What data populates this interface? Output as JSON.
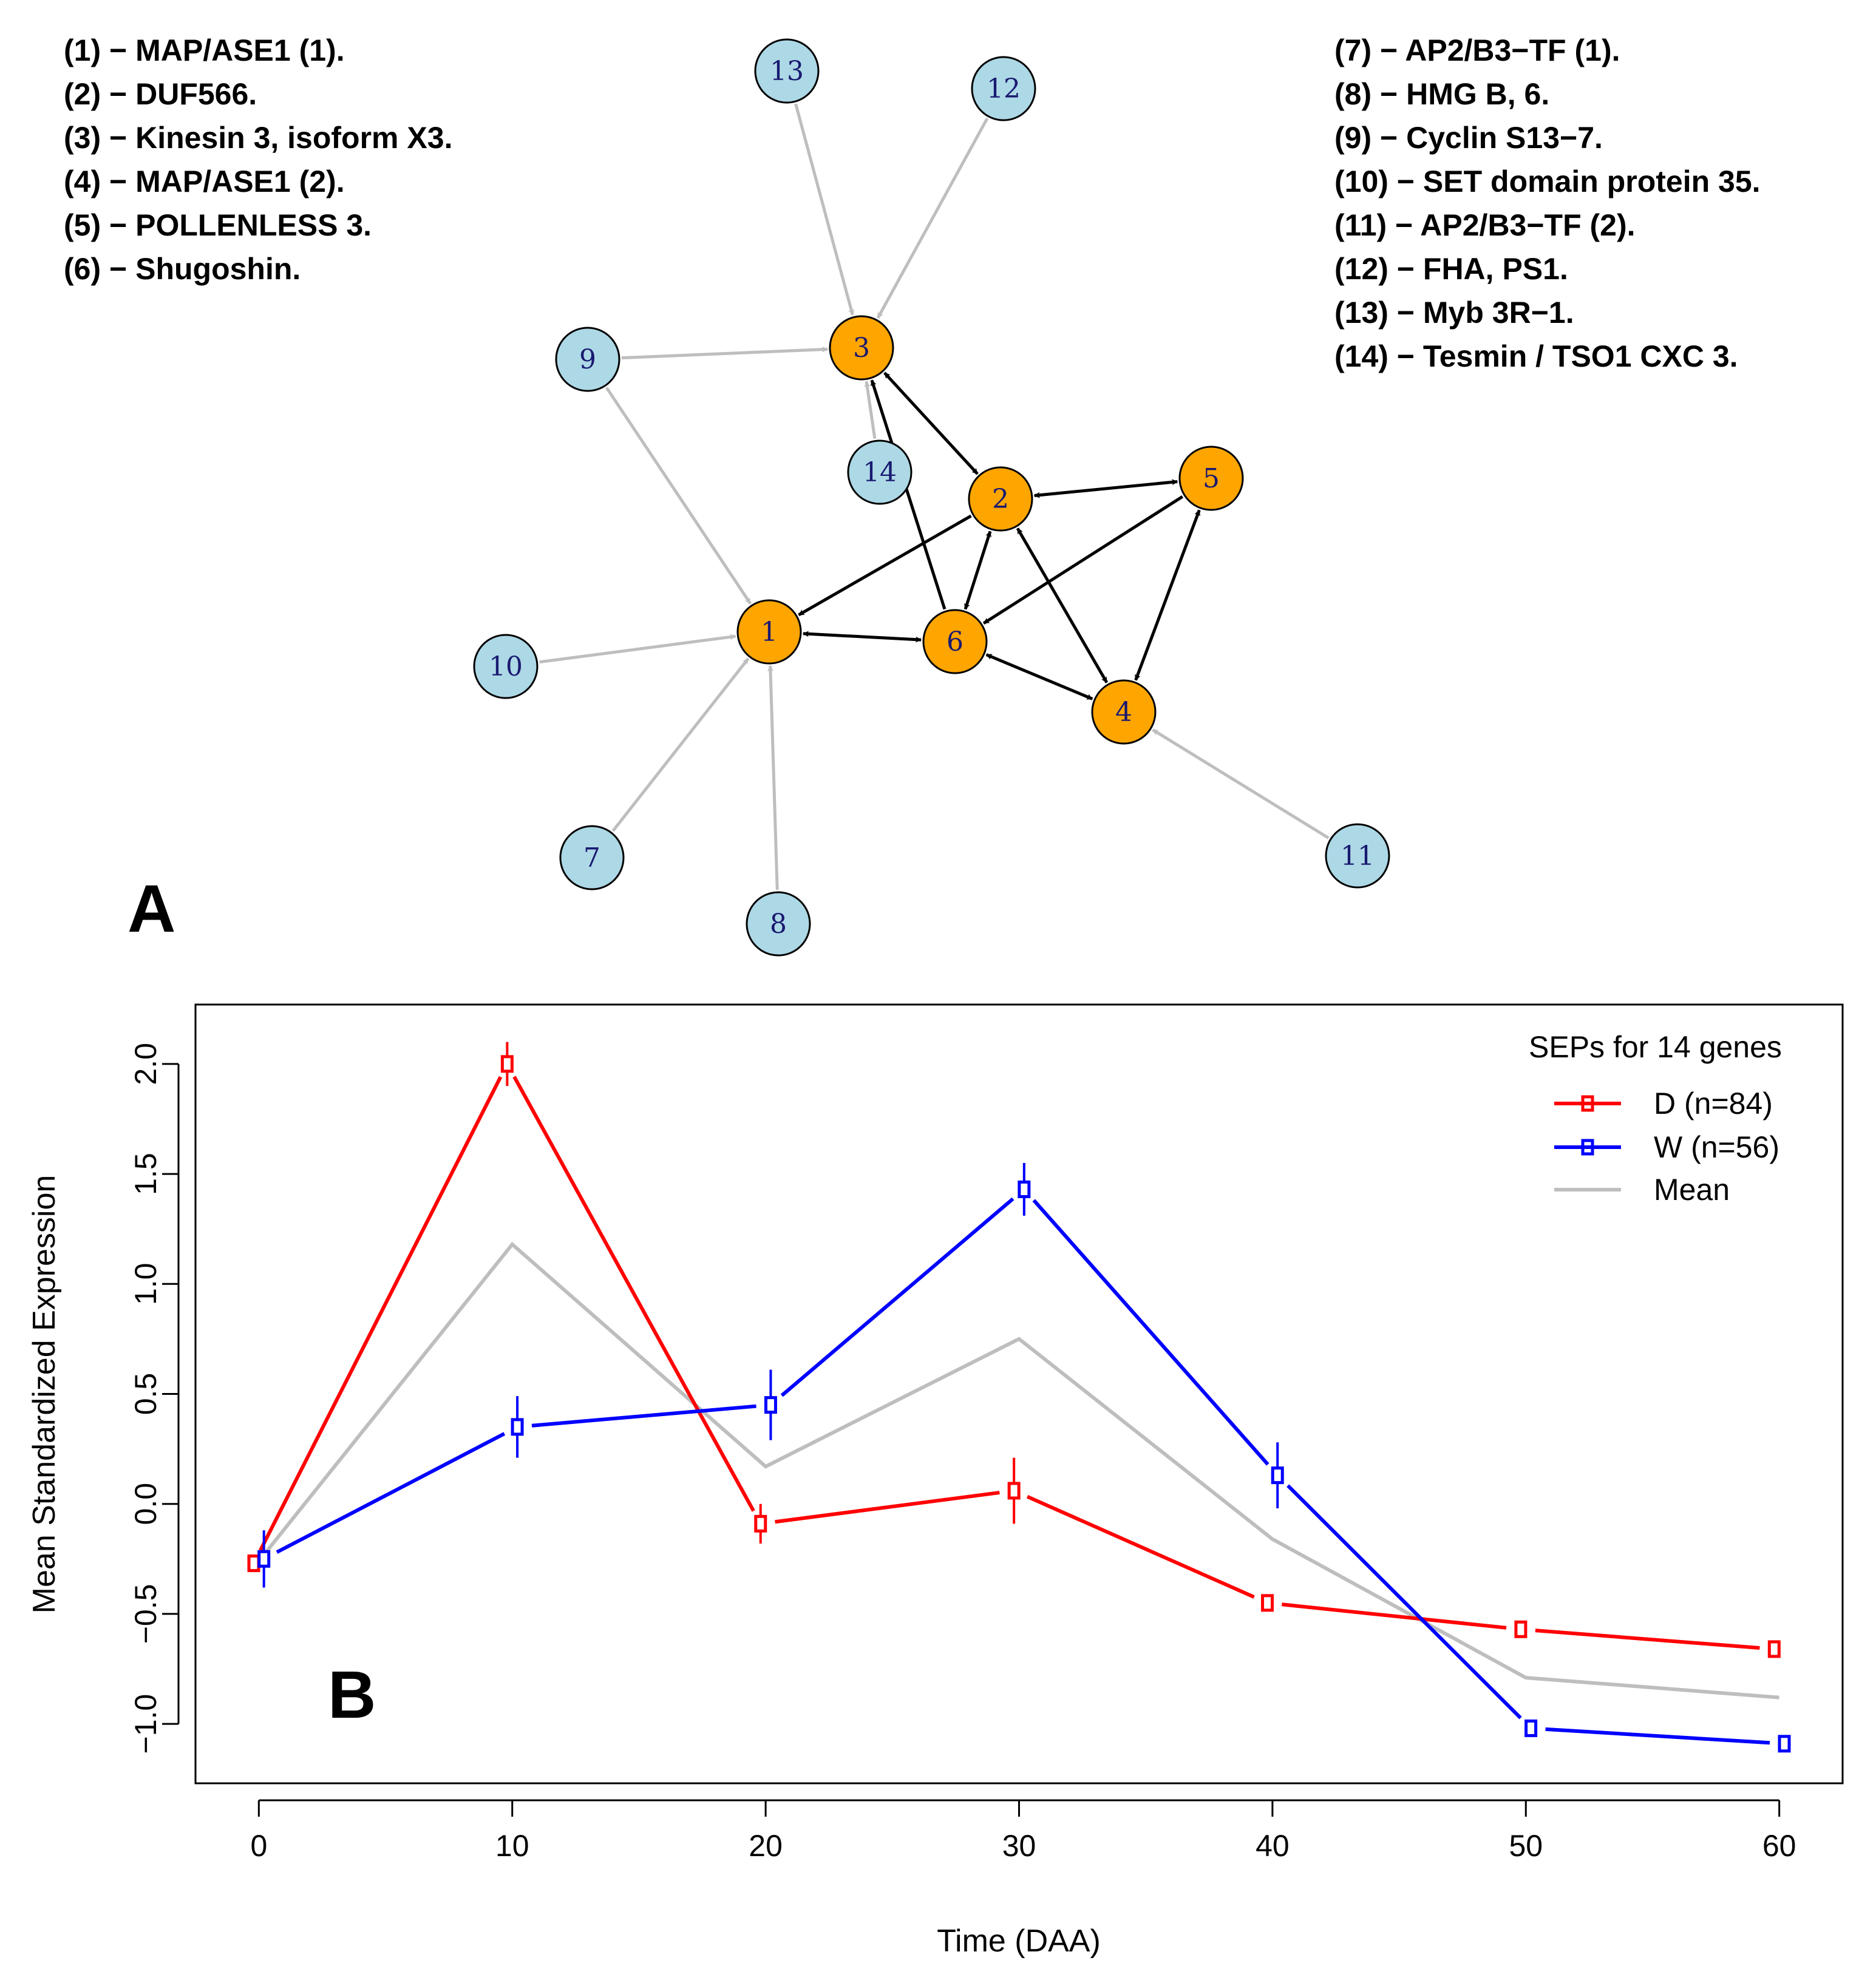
{
  "network": {
    "panel_label": "A",
    "legend_left": [
      "(1) − MAP/ASE1 (1).",
      "(2) − DUF566.",
      "(3) − Kinesin 3, isoform X3.",
      "(4) − MAP/ASE1 (2).",
      "(5) − POLLENLESS 3.",
      "(6) − Shugoshin."
    ],
    "legend_right": [
      "(7) − AP2/B3−TF (1).",
      "(8) − HMG B, 6.",
      "(9) − Cyclin S13−7.",
      "(10) − SET domain protein 35.",
      "(11) − AP2/B3−TF (2).",
      "(12) − FHA, PS1.",
      "(13) − Myb 3R−1.",
      "(14) − Tesmin / TSO1 CXC 3."
    ],
    "nodes": [
      {
        "id": "1",
        "group": "core"
      },
      {
        "id": "2",
        "group": "core"
      },
      {
        "id": "3",
        "group": "core"
      },
      {
        "id": "4",
        "group": "core"
      },
      {
        "id": "5",
        "group": "core"
      },
      {
        "id": "6",
        "group": "core"
      },
      {
        "id": "7",
        "group": "regulator"
      },
      {
        "id": "8",
        "group": "regulator"
      },
      {
        "id": "9",
        "group": "regulator"
      },
      {
        "id": "10",
        "group": "regulator"
      },
      {
        "id": "11",
        "group": "regulator"
      },
      {
        "id": "12",
        "group": "regulator"
      },
      {
        "id": "13",
        "group": "regulator"
      },
      {
        "id": "14",
        "group": "regulator"
      }
    ],
    "edges_bidirectional": [
      [
        "1",
        "6"
      ],
      [
        "2",
        "3"
      ],
      [
        "2",
        "5"
      ],
      [
        "2",
        "6"
      ],
      [
        "5",
        "4"
      ],
      [
        "6",
        "4"
      ],
      [
        "2",
        "4"
      ]
    ],
    "edges_directed": [
      [
        "2",
        "1"
      ],
      [
        "5",
        "6"
      ],
      [
        "6",
        "3"
      ]
    ],
    "edges_regulatory": [
      [
        "13",
        "3"
      ],
      [
        "12",
        "3"
      ],
      [
        "9",
        "3"
      ],
      [
        "14",
        "3"
      ],
      [
        "9",
        "1"
      ],
      [
        "10",
        "1"
      ],
      [
        "7",
        "1"
      ],
      [
        "8",
        "1"
      ],
      [
        "11",
        "4"
      ]
    ],
    "colors": {
      "core": "#FFA500",
      "regulator": "#ADD8E6",
      "core_edge": "#000000",
      "reg_edge": "#BEBEBE",
      "node_label": "#191970"
    }
  },
  "chart_data": {
    "type": "line",
    "panel_label": "B",
    "xlabel": "Time (DAA)",
    "ylabel": "Mean Standardized Expression",
    "x": [
      0,
      10,
      20,
      30,
      40,
      50,
      60
    ],
    "xlim": [
      -2.5,
      62.5
    ],
    "ylim": [
      -1.27,
      2.27
    ],
    "xticks": [
      "0",
      "10",
      "20",
      "30",
      "40",
      "50",
      "60"
    ],
    "yticks": [
      "−1.0",
      "−0.5",
      "0.0",
      "0.5",
      "1.0",
      "1.5",
      "2.0"
    ],
    "ytick_values": [
      -1.0,
      -0.5,
      0.0,
      0.5,
      1.0,
      1.5,
      2.0
    ],
    "legend_title": "SEPs for 14 genes",
    "series": [
      {
        "name": "D (n=84)",
        "color": "#FF0000",
        "offset": -0.2,
        "values": [
          -0.27,
          2.0,
          -0.09,
          0.06,
          -0.45,
          -0.57,
          -0.66
        ],
        "err": [
          0.04,
          0.1,
          0.09,
          0.15,
          0.03,
          0.03,
          0.04
        ]
      },
      {
        "name": "W (n=56)",
        "color": "#0000FF",
        "offset": 0.2,
        "values": [
          -0.25,
          0.35,
          0.45,
          1.43,
          0.13,
          -1.02,
          -1.09
        ],
        "err": [
          0.13,
          0.14,
          0.16,
          0.12,
          0.15,
          0.03,
          0.03
        ]
      },
      {
        "name": "Mean",
        "color": "#BEBEBE",
        "offset": 0,
        "values": [
          -0.26,
          1.18,
          0.17,
          0.75,
          -0.16,
          -0.79,
          -0.88
        ]
      }
    ]
  }
}
